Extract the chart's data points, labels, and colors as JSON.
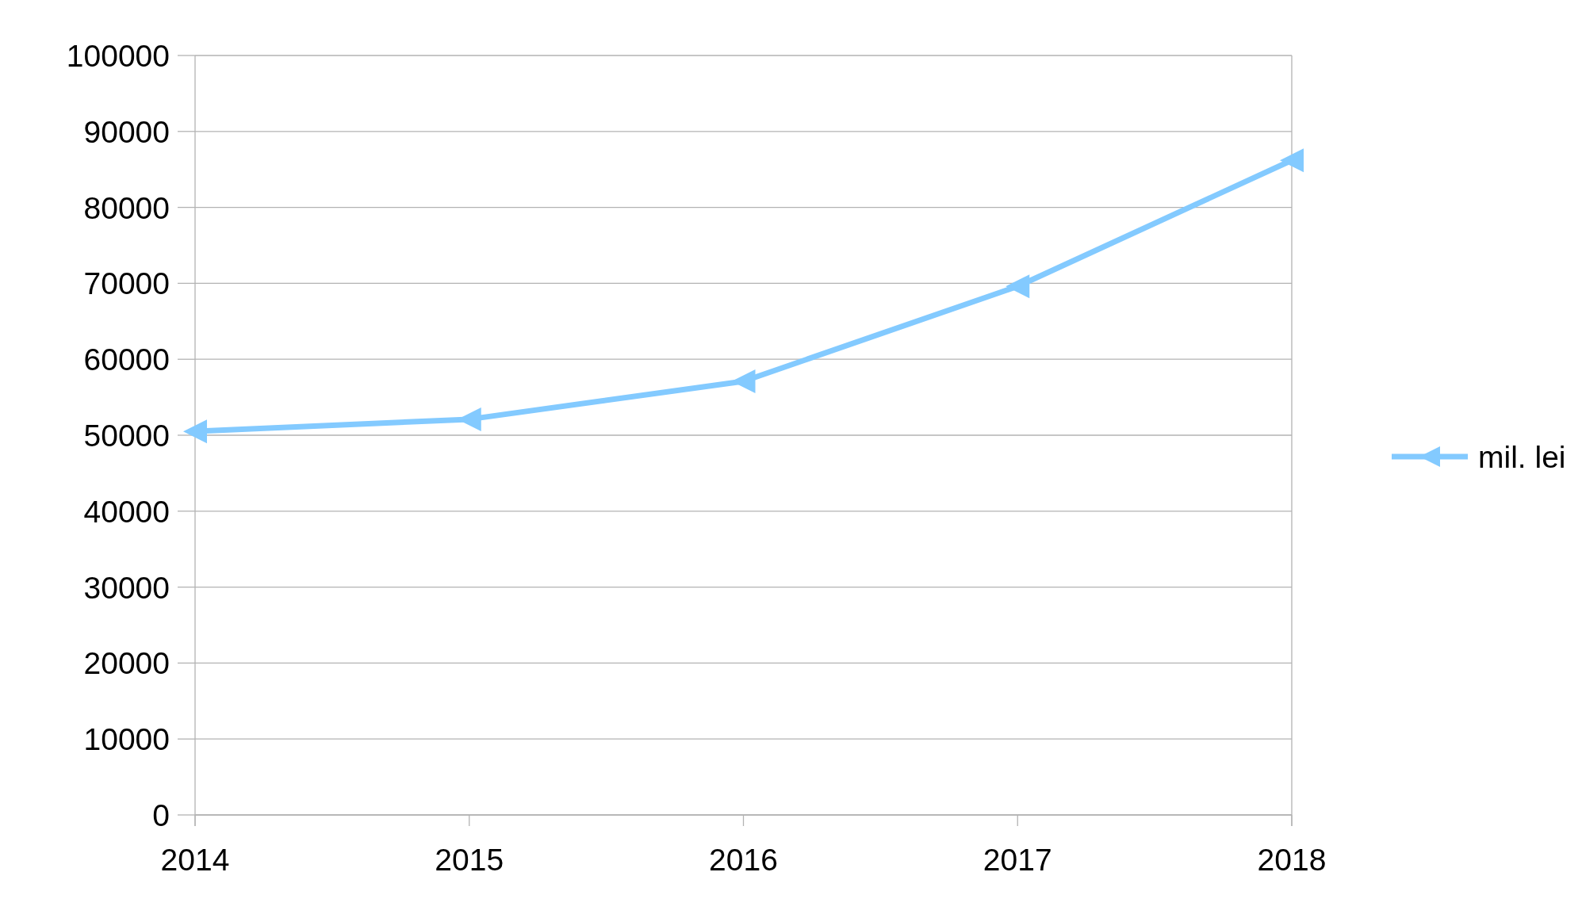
{
  "chart_data": {
    "type": "line",
    "categories": [
      "2014",
      "2015",
      "2016",
      "2017",
      "2018"
    ],
    "series": [
      {
        "name": "mil. lei",
        "color": "#83caff",
        "values": [
          50500,
          52100,
          57100,
          69600,
          86200
        ]
      }
    ],
    "ylim": [
      0,
      100000
    ],
    "yticks": [
      0,
      10000,
      20000,
      30000,
      40000,
      50000,
      60000,
      70000,
      80000,
      90000,
      100000
    ],
    "grid": "y",
    "legend": "right",
    "marker": "triangle",
    "line_style": "solid"
  }
}
